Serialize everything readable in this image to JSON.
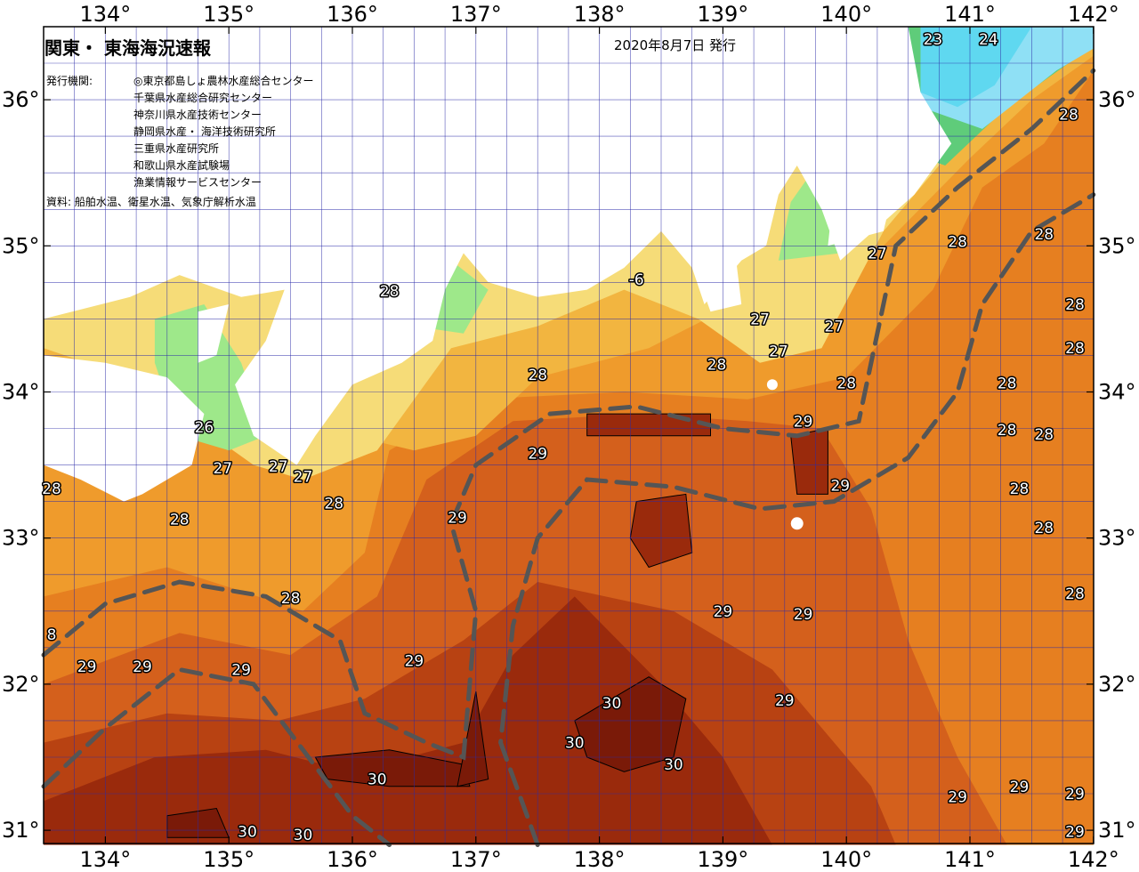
{
  "title": "関東・ 東海海況速報",
  "issued": "2020年8月7日 発行",
  "agencies_label": "発行機関:",
  "agencies": [
    "◎東京都島しょ農林水産総合センター",
    "千葉県水産総合研究センター",
    "神奈川県水産技術センター",
    "静岡県水産・ 海洋技術研究所",
    "三重県水産研究所",
    "和歌山県水産試験場",
    "漁業情報サービスセンター"
  ],
  "sources": "資料: 船舶水温、衛星水温、気象庁解析水温",
  "lon_labels": [
    "134°",
    "135°",
    "136°",
    "137°",
    "138°",
    "139°",
    "140°",
    "141°",
    "142°"
  ],
  "lat_labels": [
    "36°",
    "35°",
    "34°",
    "33°",
    "32°",
    "31°"
  ],
  "isotherm_labels": [
    {
      "text": "23",
      "lon": 140.7,
      "lat": 36.48
    },
    {
      "text": "24",
      "lon": 141.15,
      "lat": 36.52
    },
    {
      "text": "28",
      "lon": 141.8,
      "lat": 35.9
    },
    {
      "text": "28",
      "lon": 141.6,
      "lat": 35.08
    },
    {
      "text": "28",
      "lon": 141.85,
      "lat": 34.6
    },
    {
      "text": "28",
      "lon": 141.85,
      "lat": 34.3
    },
    {
      "text": "28",
      "lon": 141.3,
      "lat": 34.06
    },
    {
      "text": "28",
      "lon": 141.3,
      "lat": 33.74
    },
    {
      "text": "28",
      "lon": 141.6,
      "lat": 33.71
    },
    {
      "text": "28",
      "lon": 141.4,
      "lat": 33.34
    },
    {
      "text": "28",
      "lon": 141.6,
      "lat": 33.07
    },
    {
      "text": "28",
      "lon": 141.85,
      "lat": 32.62
    },
    {
      "text": "28",
      "lon": 140.9,
      "lat": 35.03
    },
    {
      "text": "27",
      "lon": 140.25,
      "lat": 34.95
    },
    {
      "text": "27",
      "lon": 139.3,
      "lat": 34.5
    },
    {
      "text": "27",
      "lon": 139.9,
      "lat": 34.45
    },
    {
      "text": "27",
      "lon": 139.45,
      "lat": 34.28
    },
    {
      "text": "28",
      "lon": 138.95,
      "lat": 34.19
    },
    {
      "text": "28",
      "lon": 140.0,
      "lat": 34.06
    },
    {
      "text": "28",
      "lon": 137.5,
      "lat": 34.12
    },
    {
      "text": "28",
      "lon": 136.3,
      "lat": 34.69
    },
    {
      "text": "29",
      "lon": 139.65,
      "lat": 33.8
    },
    {
      "text": "29",
      "lon": 137.5,
      "lat": 33.58
    },
    {
      "text": "29",
      "lon": 139.95,
      "lat": 33.36
    },
    {
      "text": "29",
      "lon": 136.85,
      "lat": 33.14
    },
    {
      "text": "28",
      "lon": 135.85,
      "lat": 33.24
    },
    {
      "text": "28",
      "lon": 134.6,
      "lat": 33.13
    },
    {
      "text": "26",
      "lon": 134.8,
      "lat": 33.76
    },
    {
      "text": "27",
      "lon": 134.95,
      "lat": 33.48
    },
    {
      "text": "27",
      "lon": 135.4,
      "lat": 33.49
    },
    {
      "text": "27",
      "lon": 135.6,
      "lat": 33.42
    },
    {
      "text": "28",
      "lon": 135.5,
      "lat": 32.59
    },
    {
      "text": "28",
      "lon": 133.55,
      "lat": 33.34
    },
    {
      "text": "8",
      "lon": 133.55,
      "lat": 32.34
    },
    {
      "text": "29",
      "lon": 133.85,
      "lat": 32.12
    },
    {
      "text": "29",
      "lon": 134.3,
      "lat": 32.12
    },
    {
      "text": "29",
      "lon": 135.1,
      "lat": 32.1
    },
    {
      "text": "29",
      "lon": 136.5,
      "lat": 32.16
    },
    {
      "text": "29",
      "lon": 139.0,
      "lat": 32.5
    },
    {
      "text": "29",
      "lon": 139.65,
      "lat": 32.48
    },
    {
      "text": "29",
      "lon": 139.5,
      "lat": 31.89
    },
    {
      "text": "29",
      "lon": 140.9,
      "lat": 31.23
    },
    {
      "text": "29",
      "lon": 141.4,
      "lat": 31.3
    },
    {
      "text": "29",
      "lon": 141.85,
      "lat": 31.25
    },
    {
      "text": "29",
      "lon": 141.85,
      "lat": 30.99
    },
    {
      "text": "30",
      "lon": 138.1,
      "lat": 31.87
    },
    {
      "text": "30",
      "lon": 137.8,
      "lat": 31.6
    },
    {
      "text": "30",
      "lon": 138.6,
      "lat": 31.45
    },
    {
      "text": "30",
      "lon": 136.2,
      "lat": 31.35
    },
    {
      "text": "30",
      "lon": 135.15,
      "lat": 30.99
    },
    {
      "text": "30",
      "lon": 135.6,
      "lat": 30.97
    },
    {
      "text": "-6",
      "lon": 138.3,
      "lat": 34.77
    }
  ],
  "colors": {
    "land": "#ffffff",
    "t23": "#5fd8f0",
    "t24": "#8fe0f5",
    "t25": "#5fcc7a",
    "t26": "#9ee88a",
    "t27": "#f6dc78",
    "t27b": "#f2b540",
    "t28": "#ef9b2c",
    "t28b": "#e67f20",
    "t29": "#d4601c",
    "t29b": "#b84212",
    "t30": "#9a2a0c",
    "t30b": "#7a1a08",
    "grid": "#2a2aa8",
    "kuroshio": "#555555"
  }
}
